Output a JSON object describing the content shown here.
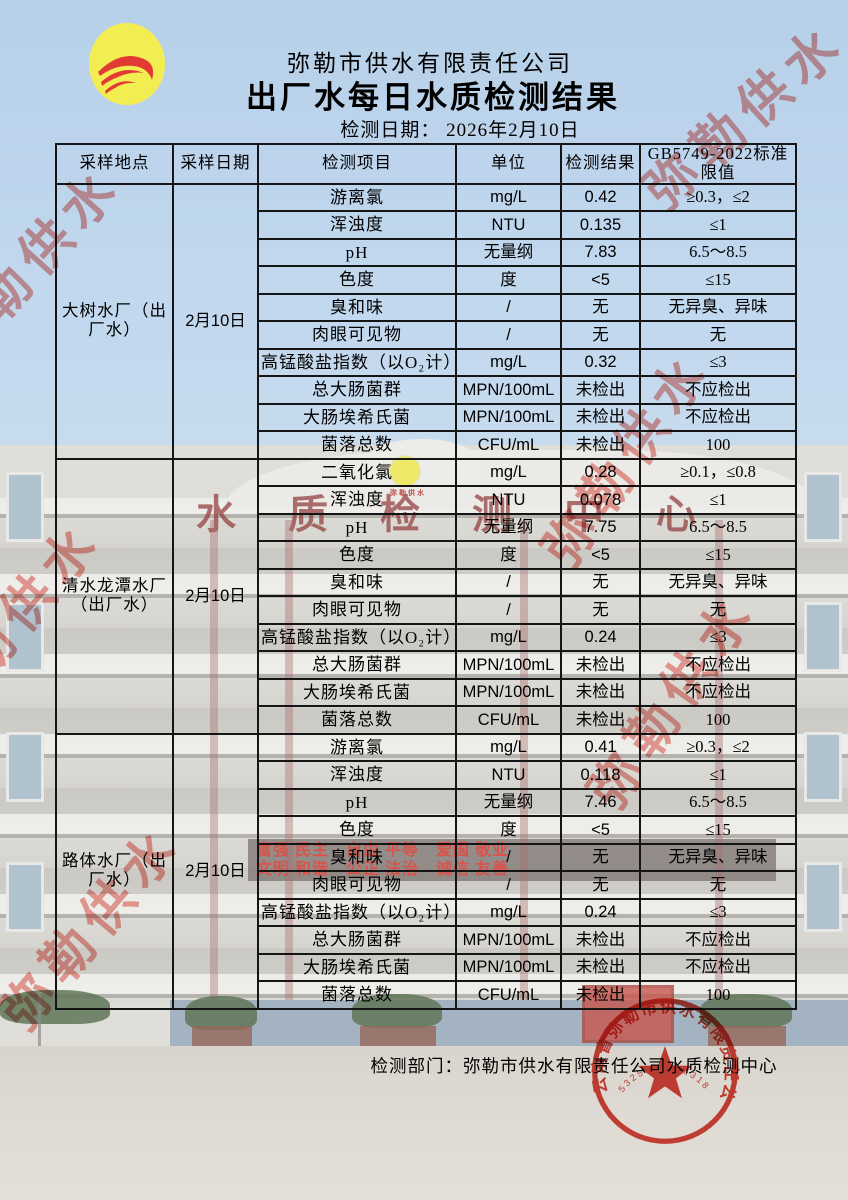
{
  "page": {
    "company": "弥勒市供水有限责任公司",
    "title": "出厂水每日水质检测结果",
    "date_label": "检测日期：",
    "date_value": "2026年2月10日",
    "footer_text": "检测部门：弥勒市供水有限责任公司水质检测中心"
  },
  "watermark": {
    "text": "弥勒供水",
    "color": "#e0483c"
  },
  "stamp": {
    "ring_text": "云南省弥勒市供水有限责任公司",
    "number": "5325000006318",
    "color": "#d42b20"
  },
  "background": {
    "building_sign": "水质检测中心",
    "emblem_text": "弥勒供水",
    "led_line1": "富强 民主　自由 平等　爱国 敬业",
    "led_line2": "文明 和谐　公正 法治　诚信 友善"
  },
  "table": {
    "headers": [
      "采样地点",
      "采样日期",
      "检测项目",
      "单位",
      "检测结果",
      "GB5749-2022标准限值"
    ],
    "sections": [
      {
        "location": "大树水厂（出厂水）",
        "date": "2月10日",
        "rows": [
          [
            "游离氯",
            "mg/L",
            "0.42",
            "≥0.3，≤2"
          ],
          [
            "浑浊度",
            "NTU",
            "0.135",
            "≤1"
          ],
          [
            "pH",
            "无量纲",
            "7.83",
            "6.5～8.5"
          ],
          [
            "色度",
            "度",
            "<5",
            "≤15"
          ],
          [
            "臭和味",
            "/",
            "无",
            "无异臭、异味"
          ],
          [
            "肉眼可见物",
            "/",
            "无",
            "无"
          ],
          [
            "高锰酸盐指数（以O₂计）",
            "mg/L",
            "0.32",
            "≤3"
          ],
          [
            "总大肠菌群",
            "MPN/100mL",
            "未检出",
            "不应检出"
          ],
          [
            "大肠埃希氏菌",
            "MPN/100mL",
            "未检出",
            "不应检出"
          ],
          [
            "菌落总数",
            "CFU/mL",
            "未检出",
            "100"
          ]
        ]
      },
      {
        "location": "清水龙潭水厂（出厂水）",
        "date": "2月10日",
        "rows": [
          [
            "二氧化氯",
            "mg/L",
            "0.28",
            "≥0.1，≤0.8"
          ],
          [
            "浑浊度",
            "NTU",
            "0.078",
            "≤1"
          ],
          [
            "pH",
            "无量纲",
            "7.75",
            "6.5～8.5"
          ],
          [
            "色度",
            "度",
            "<5",
            "≤15"
          ],
          [
            "臭和味",
            "/",
            "无",
            "无异臭、异味"
          ],
          [
            "肉眼可见物",
            "/",
            "无",
            "无"
          ],
          [
            "高锰酸盐指数（以O₂计）",
            "mg/L",
            "0.24",
            "≤3"
          ],
          [
            "总大肠菌群",
            "MPN/100mL",
            "未检出",
            "不应检出"
          ],
          [
            "大肠埃希氏菌",
            "MPN/100mL",
            "未检出",
            "不应检出"
          ],
          [
            "菌落总数",
            "CFU/mL",
            "未检出",
            "100"
          ]
        ]
      },
      {
        "location": "路体水厂（出厂水）",
        "date": "2月10日",
        "rows": [
          [
            "游离氯",
            "mg/L",
            "0.41",
            "≥0.3，≤2"
          ],
          [
            "浑浊度",
            "NTU",
            "0.118",
            "≤1"
          ],
          [
            "pH",
            "无量纲",
            "7.46",
            "6.5～8.5"
          ],
          [
            "色度",
            "度",
            "<5",
            "≤15"
          ],
          [
            "臭和味",
            "/",
            "无",
            "无异臭、异味"
          ],
          [
            "肉眼可见物",
            "/",
            "无",
            "无"
          ],
          [
            "高锰酸盐指数（以O₂计）",
            "mg/L",
            "0.24",
            "≤3"
          ],
          [
            "总大肠菌群",
            "MPN/100mL",
            "未检出",
            "不应检出"
          ],
          [
            "大肠埃希氏菌",
            "MPN/100mL",
            "未检出",
            "不应检出"
          ],
          [
            "菌落总数",
            "CFU/mL",
            "未检出",
            "100"
          ]
        ]
      }
    ]
  }
}
